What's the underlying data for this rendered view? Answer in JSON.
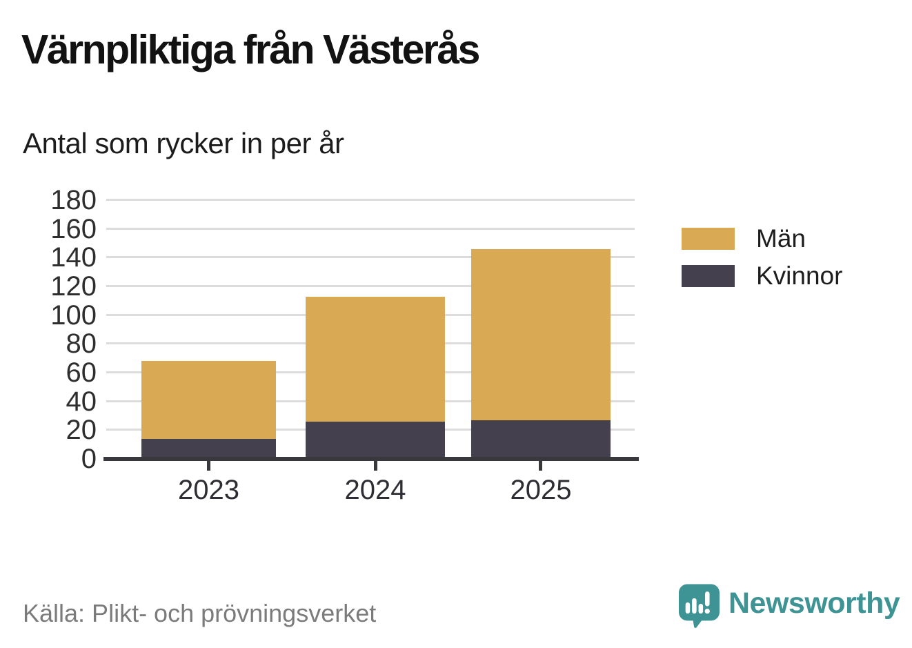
{
  "header": {
    "title": "Värnpliktiga från Västerås",
    "subtitle": "Antal som rycker in per år"
  },
  "footer": {
    "source": "Källa: Plikt- och prövningsverket",
    "brand": "Newsworthy"
  },
  "colors": {
    "men": "#D9A953",
    "women": "#44404E",
    "gridline": "#DCDCDC",
    "axis": "#39393D",
    "brand_teal": "#3E9394",
    "source_gray": "#7B7B7B"
  },
  "chart_data": {
    "type": "bar",
    "stacked": true,
    "title": "Värnpliktiga från Västerås",
    "subtitle": "Antal som rycker in per år",
    "categories": [
      "2023",
      "2024",
      "2025"
    ],
    "series": [
      {
        "name": "Män",
        "color": "#D9A953",
        "values": [
          54,
          87,
          119
        ]
      },
      {
        "name": "Kvinnor",
        "color": "#44404E",
        "values": [
          14,
          26,
          27
        ]
      }
    ],
    "totals": [
      68,
      113,
      146
    ],
    "xlabel": "",
    "ylabel": "",
    "ylim": [
      0,
      180
    ],
    "ytick_step": 20,
    "yticks": [
      0,
      20,
      40,
      60,
      80,
      100,
      120,
      140,
      160,
      180
    ],
    "grid": "horizontal",
    "legend_position": "right",
    "source": "Källa: Plikt- och prövningsverket"
  }
}
